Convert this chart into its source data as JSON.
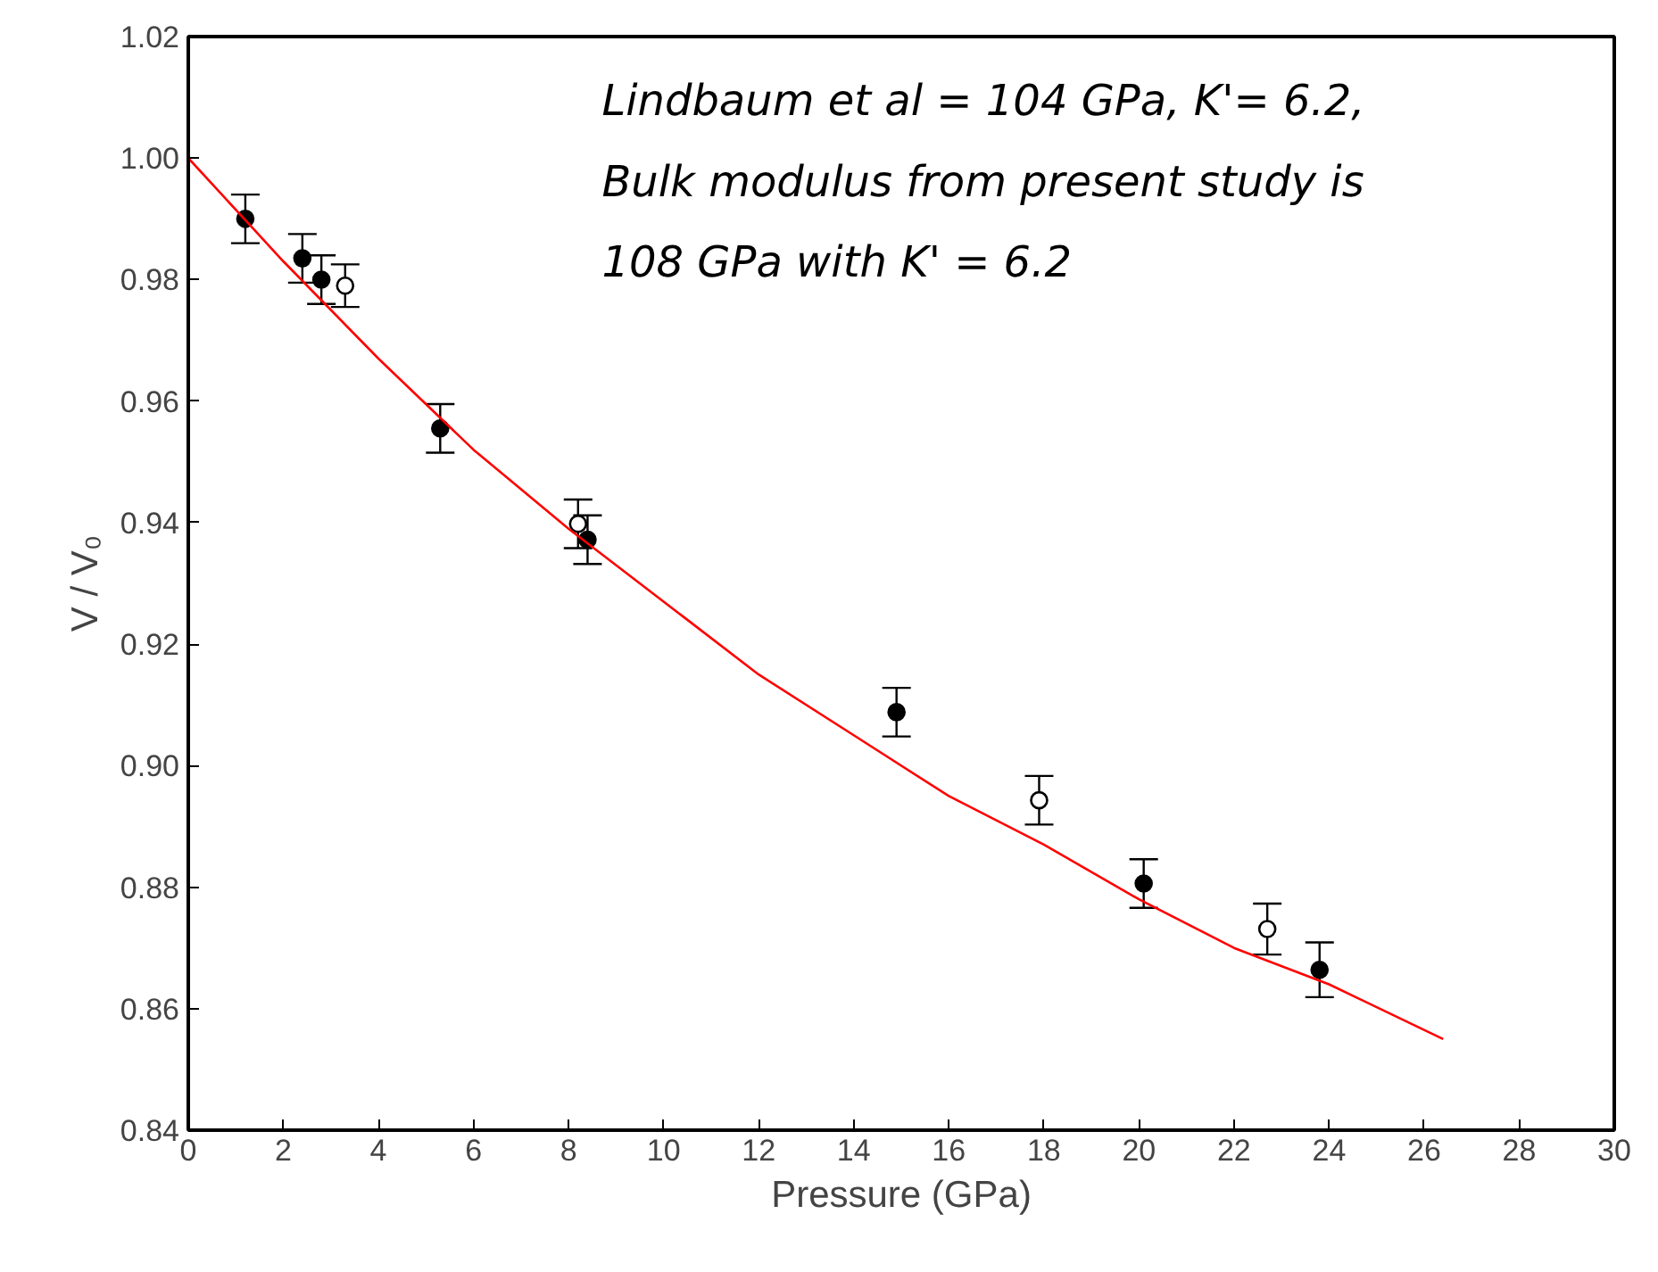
{
  "chart_data": {
    "type": "scatter",
    "xlabel": "Pressure (GPa)",
    "ylabel": "V / V₀",
    "xlim": [
      0,
      30
    ],
    "ylim": [
      0.84,
      1.02
    ],
    "xticks": [
      0,
      2,
      4,
      6,
      8,
      10,
      12,
      14,
      16,
      18,
      20,
      22,
      24,
      26,
      28,
      30
    ],
    "yticks": [
      {
        "value": 0.84,
        "label": "0.84"
      },
      {
        "value": 0.86,
        "label": "0.86"
      },
      {
        "value": 0.88,
        "label": "0.88"
      },
      {
        "value": 0.9,
        "label": "0.90"
      },
      {
        "value": 0.92,
        "label": "0.92"
      },
      {
        "value": 0.94,
        "label": "0.94"
      },
      {
        "value": 0.96,
        "label": "0.96"
      },
      {
        "value": 0.98,
        "label": "0.98"
      },
      {
        "value": 1.0,
        "label": "1.00"
      },
      {
        "value": 1.02,
        "label": "1.02"
      }
    ],
    "grid": false,
    "annotations": [
      "Lindbaum et al = 104 GPa,   K'= 6.2,",
      "Bulk modulus from present study is",
      " 108 GPa with K' = 6.2"
    ],
    "series": [
      {
        "marker": "circle",
        "color": "#000000",
        "x": [
          1.2,
          2.4,
          2.8,
          5.3,
          8.4,
          14.9,
          20.1,
          23.8
        ],
        "values": [
          0.99,
          0.9835,
          0.98,
          0.9555,
          0.9372,
          0.9088,
          0.8806,
          0.8664
        ],
        "errors": [
          0.004,
          0.004,
          0.004,
          0.004,
          0.004,
          0.004,
          0.004,
          0.0045
        ]
      },
      {
        "marker": "circle",
        "color": "#ffffff",
        "x": [
          3.3,
          8.2,
          17.9,
          22.7
        ],
        "values": [
          0.979,
          0.9398,
          0.8943,
          0.8731
        ],
        "errors": [
          0.0035,
          0.004,
          0.004,
          0.0042
        ]
      },
      {
        "type": "line",
        "marker": "none",
        "color": "#ff0000",
        "x": [
          0,
          2,
          4,
          6,
          8,
          10,
          12,
          14,
          16,
          18,
          20,
          22,
          24,
          26.4
        ],
        "values": [
          1.0,
          0.983,
          0.967,
          0.952,
          0.939,
          0.927,
          0.915,
          0.905,
          0.895,
          0.887,
          0.878,
          0.87,
          0.864,
          0.855
        ]
      }
    ]
  }
}
